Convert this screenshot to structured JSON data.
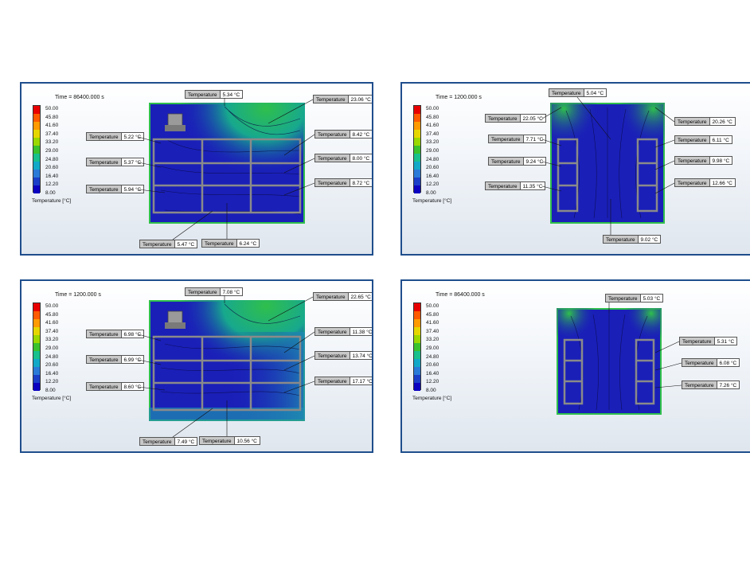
{
  "panels": [
    {
      "time": "Time = 86400.000 s",
      "legend_title": "Temperature [°C]",
      "legend_values": [
        "50.00",
        "45.80",
        "41.60",
        "37.40",
        "33.20",
        "29.00",
        "24.80",
        "20.60",
        "16.40",
        "12.20",
        "8.00"
      ],
      "probes": [
        {
          "label": "Temperature",
          "value": "5.34 °C"
        },
        {
          "label": "Temperature",
          "value": "23.06 °C"
        },
        {
          "label": "Temperature",
          "value": "5.22 °C"
        },
        {
          "label": "Temperature",
          "value": "8.42 °C"
        },
        {
          "label": "Temperature",
          "value": "5.37 °C"
        },
        {
          "label": "Temperature",
          "value": "8.00 °C"
        },
        {
          "label": "Temperature",
          "value": "5.94 °C"
        },
        {
          "label": "Temperature",
          "value": "8.72 °C"
        },
        {
          "label": "Temperature",
          "value": "5.47 °C"
        },
        {
          "label": "Temperature",
          "value": "6.24 °C"
        }
      ]
    },
    {
      "time": "Time = 1200.000 s",
      "legend_title": "Temperature [°C]",
      "legend_values": [
        "50.00",
        "45.80",
        "41.60",
        "37.40",
        "33.20",
        "29.00",
        "24.80",
        "20.60",
        "16.40",
        "12.20",
        "8.00"
      ],
      "probes": [
        {
          "label": "Temperature",
          "value": "5.04 °C"
        },
        {
          "label": "Temperature",
          "value": "22.05 °C"
        },
        {
          "label": "Temperature",
          "value": "20.26 °C"
        },
        {
          "label": "Temperature",
          "value": "7.71 °C"
        },
        {
          "label": "Temperature",
          "value": "6.11 °C"
        },
        {
          "label": "Temperature",
          "value": "9.24 °C"
        },
        {
          "label": "Temperature",
          "value": "9.98 °C"
        },
        {
          "label": "Temperature",
          "value": "11.35 °C"
        },
        {
          "label": "Temperature",
          "value": "12.66 °C"
        },
        {
          "label": "Temperature",
          "value": "9.02 °C"
        }
      ]
    },
    {
      "time": "Time = 1200.000 s",
      "legend_title": "Temperature [°C]",
      "legend_values": [
        "50.00",
        "45.80",
        "41.60",
        "37.40",
        "33.20",
        "29.00",
        "24.80",
        "20.60",
        "16.40",
        "12.20",
        "8.00"
      ],
      "probes": [
        {
          "label": "Temperature",
          "value": "7.08 °C"
        },
        {
          "label": "Temperature",
          "value": "22.65 °C"
        },
        {
          "label": "Temperature",
          "value": "6.98 °C"
        },
        {
          "label": "Temperature",
          "value": "11.38 °C"
        },
        {
          "label": "Temperature",
          "value": "6.99 °C"
        },
        {
          "label": "Temperature",
          "value": "13.74 °C"
        },
        {
          "label": "Temperature",
          "value": "8.60 °C"
        },
        {
          "label": "Temperature",
          "value": "17.17 °C"
        },
        {
          "label": "Temperature",
          "value": "7.49 °C"
        },
        {
          "label": "Temperature",
          "value": "10.56 °C"
        }
      ]
    },
    {
      "time": "Time = 86400.000 s",
      "legend_title": "Temperature [°C]",
      "legend_values": [
        "50.00",
        "45.80",
        "41.60",
        "37.40",
        "33.20",
        "29.00",
        "24.80",
        "20.60",
        "16.40",
        "12.20",
        "8.00"
      ],
      "probes": [
        {
          "label": "Temperature",
          "value": "5.03 °C"
        },
        {
          "label": "Temperature",
          "value": "5.31 °C"
        },
        {
          "label": "Temperature",
          "value": "6.08 °C"
        },
        {
          "label": "Temperature",
          "value": "7.26 °C"
        }
      ]
    }
  ],
  "legend_colors": [
    "#e80000",
    "#ff5a00",
    "#ff9a00",
    "#e6d600",
    "#9ad800",
    "#39c22d",
    "#17c08c",
    "#12a8c8",
    "#2a7ad8",
    "#1a3ec8",
    "#0a00c0"
  ],
  "colors": {
    "frame": "#1f4e8c",
    "cold": "#1a1fb8",
    "warm": "#2fbf4c",
    "rack": "#8a8a8a"
  }
}
